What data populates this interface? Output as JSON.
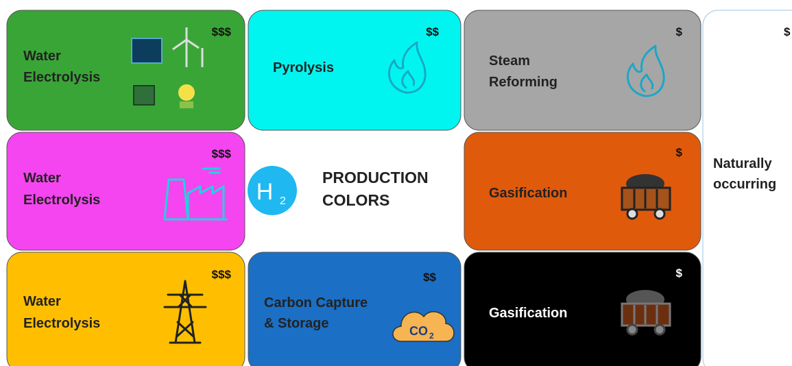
{
  "cards": [
    {
      "lines": [
        "Water",
        "Electrolysis"
      ],
      "cost": "$$$"
    },
    {
      "lines": [
        "Pyrolysis"
      ],
      "cost": "$$"
    },
    {
      "lines": [
        "Steam",
        "Reforming"
      ],
      "cost": "$"
    },
    {
      "lines": [
        "Naturally",
        "occurring"
      ],
      "cost": "$"
    },
    {
      "lines": [
        "Water",
        "Electrolysis"
      ],
      "cost": "$$$"
    },
    {
      "lines": [
        "Gasification"
      ],
      "cost": "$"
    },
    {
      "lines": [
        "Water",
        "Electrolysis"
      ],
      "cost": "$$$"
    },
    {
      "lines": [
        "Carbon Capture",
        "& Storage"
      ],
      "cost": "$$",
      "icon_text": {
        "main": "CO",
        "sub": "2"
      }
    },
    {
      "lines": [
        "Gasification"
      ],
      "cost": "$"
    }
  ],
  "center": {
    "symbol": "H",
    "subscript": "2",
    "lines": [
      "PRODUCTION",
      "COLORS"
    ]
  }
}
